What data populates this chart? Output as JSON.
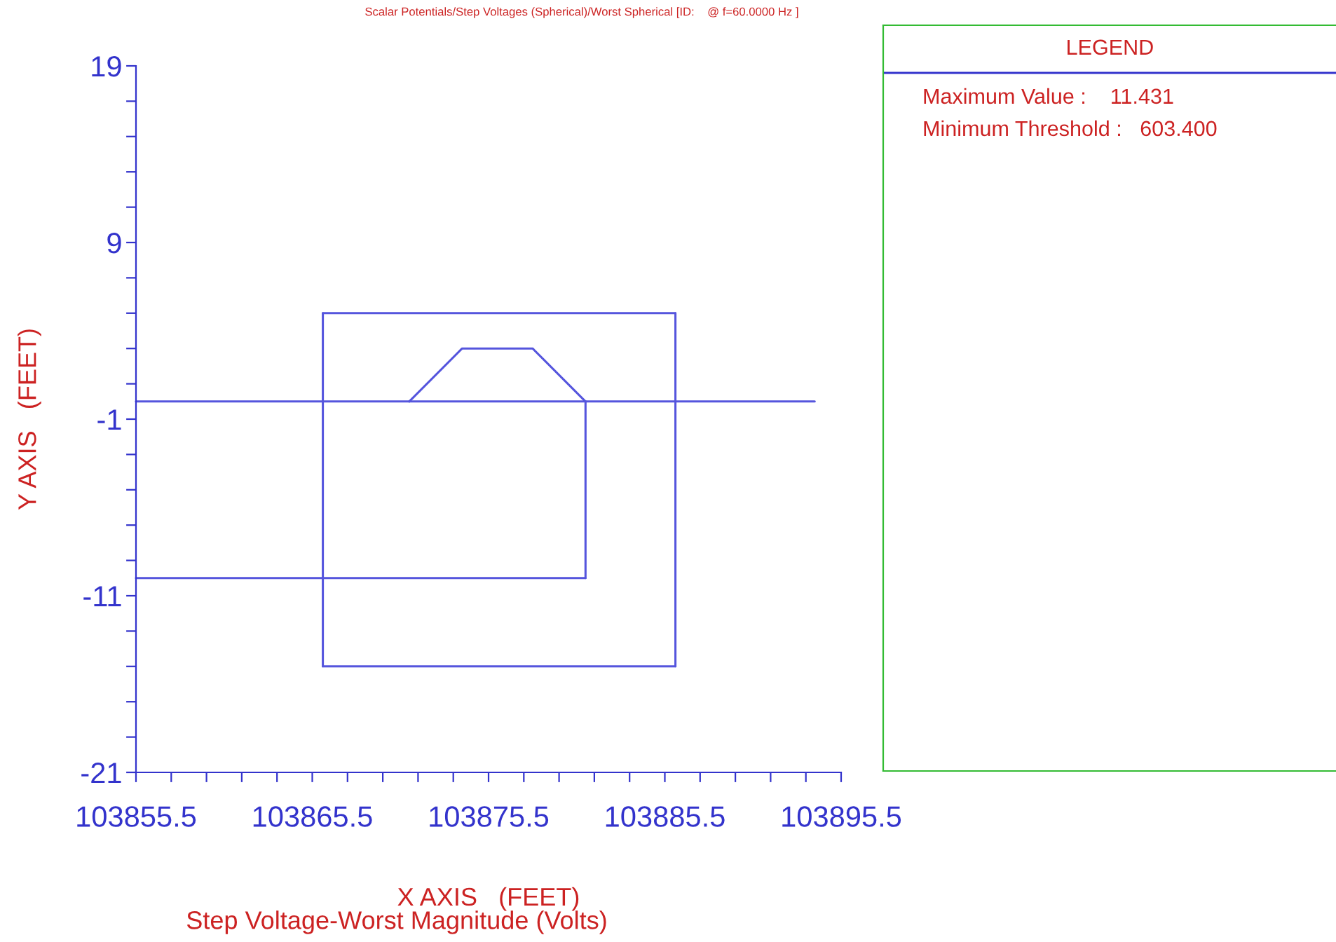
{
  "chart_data": {
    "type": "line",
    "title": "Scalar Potentials/Step Voltages (Spherical)/Worst Spherical [ID:    @ f=60.0000 Hz ]",
    "subtitle": "Step Voltage-Worst Magnitude (Volts)",
    "xlabel": "X AXIS   (FEET)",
    "ylabel": "Y AXIS   (FEET)",
    "annotations": [
      "LEGEND",
      "Maximum Value :    11.431",
      "Minimum Threshold :   603.400"
    ],
    "series": [
      {
        "color": "#5555dd",
        "x": [
          103855.5,
          103894
        ],
        "values": [
          0,
          0
        ]
      },
      {
        "color": "#5555dd",
        "x": [
          103866.1,
          103886.1
        ],
        "values": [
          5,
          5
        ]
      },
      {
        "color": "#5555dd",
        "x": [
          103866.1,
          103886.1
        ],
        "values": [
          -15,
          -15
        ]
      },
      {
        "color": "#5555dd",
        "x": [
          103866.1,
          103866.1
        ],
        "values": [
          -15,
          5
        ]
      },
      {
        "color": "#5555dd",
        "x": [
          103886.1,
          103886.1
        ],
        "values": [
          -15,
          5
        ]
      },
      {
        "color": "#5555dd",
        "x": [
          103855.5,
          103881
        ],
        "values": [
          -10,
          -10
        ]
      },
      {
        "color": "#5555dd",
        "x": [
          103881,
          103881
        ],
        "values": [
          -10,
          0
        ]
      },
      {
        "color": "#5555dd",
        "x": [
          103871,
          103874,
          103878,
          103881
        ],
        "values": [
          0,
          3,
          3,
          0
        ]
      }
    ],
    "xlim": [
      103855.5,
      103895.5
    ],
    "xticks": [
      103855.5,
      {
        "value": 103857.5,
        "label": null
      },
      {
        "value": 103859.5,
        "label": null
      },
      {
        "value": 103861.5,
        "label": null
      },
      {
        "value": 103863.5,
        "label": null
      },
      103865.5,
      {
        "value": 103867.5,
        "label": null
      },
      {
        "value": 103869.5,
        "label": null
      },
      {
        "value": 103871.5,
        "label": null
      },
      {
        "value": 103873.5,
        "label": null
      },
      103875.5,
      {
        "value": 103877.5,
        "label": null
      },
      {
        "value": 103879.5,
        "label": null
      },
      {
        "value": 103881.5,
        "label": null
      },
      {
        "value": 103883.5,
        "label": null
      },
      103885.5,
      {
        "value": 103887.5,
        "label": null
      },
      {
        "value": 103889.5,
        "label": null
      },
      {
        "value": 103891.5,
        "label": null
      },
      {
        "value": 103893.5,
        "label": null
      },
      103895.5
    ],
    "ylim": [
      -21,
      19
    ],
    "yticks": [
      -21,
      {
        "value": -19,
        "label": null
      },
      {
        "value": -17,
        "label": null
      },
      {
        "value": -15,
        "label": null
      },
      {
        "value": -13,
        "label": null
      },
      -11,
      {
        "value": -9,
        "label": null
      },
      {
        "value": -7,
        "label": null
      },
      {
        "value": -5,
        "label": null
      },
      {
        "value": -3,
        "label": null
      },
      -1,
      {
        "value": 1,
        "label": null
      },
      {
        "value": 3,
        "label": null
      },
      {
        "value": 5,
        "label": null
      },
      {
        "value": 7,
        "label": null
      },
      9,
      {
        "value": 11,
        "label": null
      },
      {
        "value": 13,
        "label": null
      },
      {
        "value": 15,
        "label": null
      },
      {
        "value": 17,
        "label": null
      },
      19
    ],
    "grid": false,
    "legend": false
  }
}
